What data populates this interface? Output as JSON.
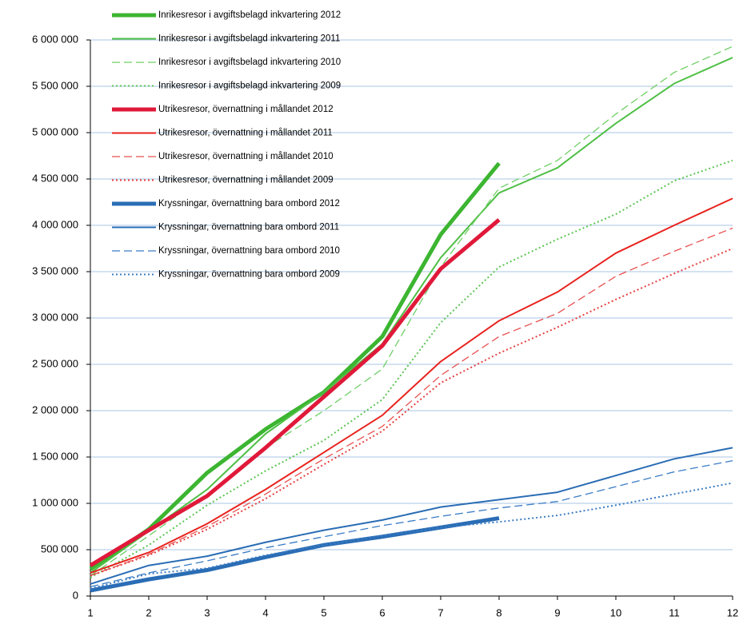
{
  "chart_data": {
    "type": "line",
    "grid": true,
    "legend": "top-left",
    "x": [
      1,
      2,
      3,
      4,
      5,
      6,
      7,
      8,
      9,
      10,
      11,
      12
    ],
    "xlim": [
      1,
      12
    ],
    "xticks": [
      1,
      2,
      3,
      4,
      5,
      6,
      7,
      8,
      9,
      10,
      11,
      12
    ],
    "ylim": [
      0,
      6000000
    ],
    "yticks": [
      0,
      {
        "value": 500000,
        "label": "500 000"
      },
      {
        "value": 1000000,
        "label": "1 000 000"
      },
      {
        "value": 1500000,
        "label": "1 500 000"
      },
      {
        "value": 2000000,
        "label": "2 000 000"
      },
      {
        "value": 2500000,
        "label": "2 500 000"
      },
      {
        "value": 3000000,
        "label": "3 000 000"
      },
      {
        "value": 3500000,
        "label": "3 500 000"
      },
      {
        "value": 4000000,
        "label": "4 000 000"
      },
      {
        "value": 4500000,
        "label": "4 500 000"
      },
      {
        "value": 5000000,
        "label": "5 000 000"
      },
      {
        "value": 5500000,
        "label": "5 500 000"
      },
      {
        "value": 6000000,
        "label": "6 000 000"
      }
    ],
    "series": [
      {
        "name": "Inrikesresor i avgiftsbelagd inkvartering 2012",
        "color": "#3cb531",
        "dash": "solid",
        "width": 5,
        "values": [
          290000,
          720000,
          1330000,
          1800000,
          2200000,
          2800000,
          3900000,
          4670000,
          null,
          null,
          null,
          null
        ]
      },
      {
        "name": "Inrikesresor i avgiftsbelagd inkvartering 2011",
        "color": "#4fbf45",
        "dash": "solid",
        "width": 2,
        "values": [
          250000,
          700000,
          1150000,
          1750000,
          2200000,
          2720000,
          3650000,
          4350000,
          4620000,
          5100000,
          5530000,
          5810000
        ]
      },
      {
        "name": "Inrikesresor i avgiftsbelagd inkvartering 2010",
        "color": "#6fcf66",
        "dash": "dashed",
        "width": 1.3,
        "values": [
          220000,
          650000,
          1100000,
          1600000,
          2000000,
          2450000,
          3550000,
          4400000,
          4700000,
          5200000,
          5650000,
          5930000
        ]
      },
      {
        "name": "Inrikesresor i avgiftsbelagd inkvartering 2009",
        "color": "#5cc452",
        "dash": "dotted",
        "width": 2,
        "values": [
          200000,
          550000,
          980000,
          1350000,
          1680000,
          2120000,
          2950000,
          3550000,
          3850000,
          4120000,
          4480000,
          4700000
        ]
      },
      {
        "name": "Utrikesresor, övernattning i mållandet 2012",
        "color": "#e0193a",
        "dash": "solid",
        "width": 5,
        "values": [
          330000,
          710000,
          1080000,
          1600000,
          2150000,
          2700000,
          3530000,
          4060000,
          null,
          null,
          null,
          null
        ]
      },
      {
        "name": "Utrikesresor, övernattning i mållandet 2011",
        "color": "#e8231e",
        "dash": "solid",
        "width": 2,
        "values": [
          250000,
          470000,
          780000,
          1150000,
          1550000,
          1950000,
          2530000,
          2970000,
          3280000,
          3700000,
          4000000,
          4290000
        ]
      },
      {
        "name": "Utrikesresor, övernattning i mållandet 2010",
        "color": "#e85050",
        "dash": "dashed",
        "width": 1.3,
        "values": [
          220000,
          450000,
          750000,
          1100000,
          1480000,
          1830000,
          2380000,
          2800000,
          3050000,
          3450000,
          3720000,
          3970000
        ]
      },
      {
        "name": "Utrikesresor, övernattning i mållandet 2009",
        "color": "#e84040",
        "dash": "dotted",
        "width": 2,
        "values": [
          220000,
          440000,
          720000,
          1050000,
          1420000,
          1780000,
          2300000,
          2620000,
          2900000,
          3200000,
          3480000,
          3750000
        ]
      },
      {
        "name": "Kryssningar, övernattning bara ombord 2012",
        "color": "#2a6db5",
        "dash": "solid",
        "width": 5,
        "values": [
          60000,
          180000,
          280000,
          420000,
          550000,
          640000,
          740000,
          840000,
          null,
          null,
          null,
          null
        ]
      },
      {
        "name": "Kryssningar, övernattning bara ombord 2011",
        "color": "#2a6db5",
        "dash": "solid",
        "width": 2,
        "values": [
          130000,
          330000,
          430000,
          580000,
          710000,
          820000,
          960000,
          1040000,
          1120000,
          1300000,
          1480000,
          1600000
        ]
      },
      {
        "name": "Kryssningar, övernattning bara ombord 2010",
        "color": "#3a7cc4",
        "dash": "dashed",
        "width": 1.3,
        "values": [
          100000,
          250000,
          380000,
          520000,
          640000,
          760000,
          860000,
          950000,
          1020000,
          1180000,
          1340000,
          1460000
        ]
      },
      {
        "name": "Kryssningar, övernattning bara ombord 2009",
        "color": "#3a7cc4",
        "dash": "dotted",
        "width": 2,
        "values": [
          80000,
          240000,
          300000,
          440000,
          550000,
          650000,
          740000,
          800000,
          870000,
          980000,
          1100000,
          1220000
        ]
      }
    ]
  }
}
